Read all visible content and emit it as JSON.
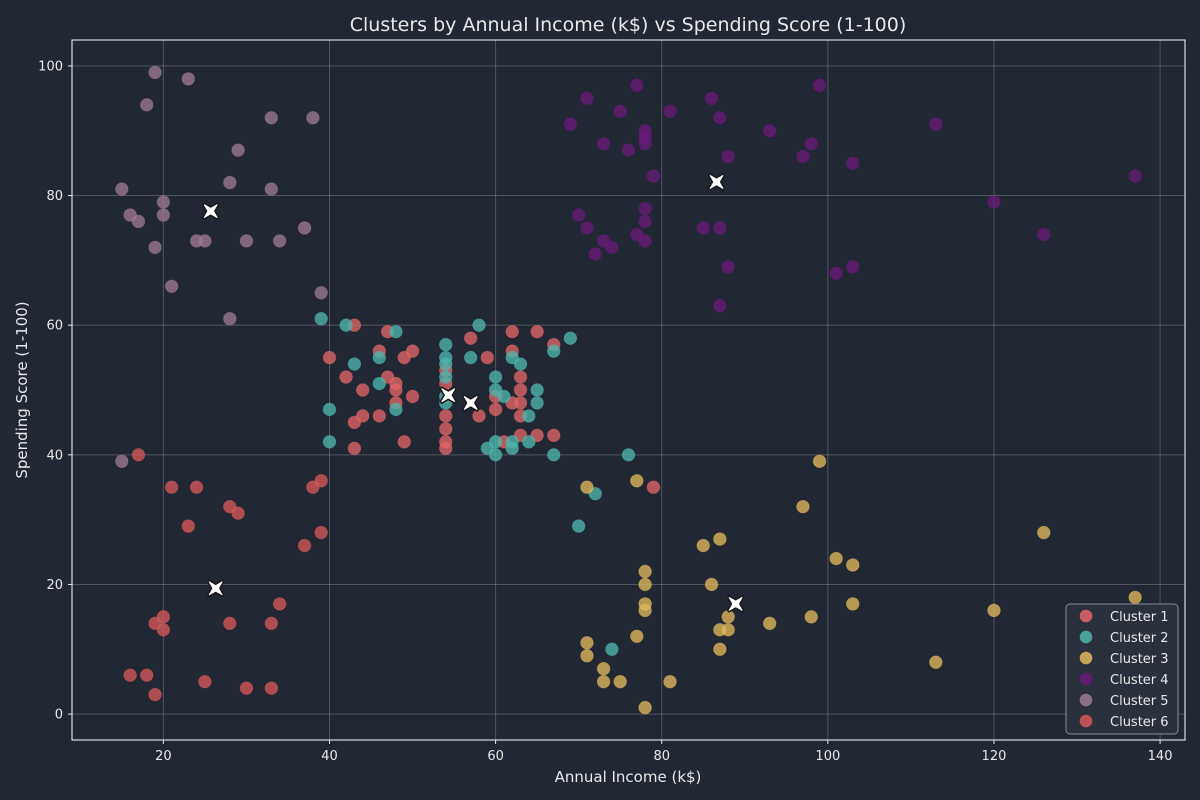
{
  "chart_data": {
    "type": "scatter",
    "title": "Clusters by Annual Income (k$) vs Spending Score (1-100)",
    "xlabel": "Annual Income (k$)",
    "ylabel": "Spending Score (1-100)",
    "xlim": [
      9,
      143
    ],
    "ylim": [
      -4,
      104
    ],
    "xticks": [
      20,
      40,
      60,
      80,
      100,
      120,
      140
    ],
    "yticks": [
      0,
      20,
      40,
      60,
      80,
      100
    ],
    "grid": true,
    "legend_position": "bottom-right",
    "series": [
      {
        "name": "Cluster 1",
        "color": "#e06666",
        "points": [
          [
            40,
            55
          ],
          [
            42,
            52
          ],
          [
            43,
            60
          ],
          [
            43,
            45
          ],
          [
            43,
            41
          ],
          [
            44,
            50
          ],
          [
            44,
            46
          ],
          [
            46,
            56
          ],
          [
            46,
            46
          ],
          [
            47,
            59
          ],
          [
            47,
            52
          ],
          [
            48,
            51
          ],
          [
            48,
            50
          ],
          [
            48,
            48
          ],
          [
            49,
            55
          ],
          [
            49,
            42
          ],
          [
            50,
            56
          ],
          [
            50,
            49
          ],
          [
            54,
            53
          ],
          [
            54,
            51
          ],
          [
            54,
            46
          ],
          [
            54,
            44
          ],
          [
            54,
            42
          ],
          [
            54,
            41
          ],
          [
            57,
            58
          ],
          [
            58,
            46
          ],
          [
            59,
            55
          ],
          [
            60,
            49
          ],
          [
            60,
            47
          ],
          [
            61,
            42
          ],
          [
            62,
            59
          ],
          [
            62,
            56
          ],
          [
            62,
            48
          ],
          [
            63,
            52
          ],
          [
            63,
            50
          ],
          [
            63,
            48
          ],
          [
            63,
            46
          ],
          [
            63,
            43
          ],
          [
            65,
            59
          ],
          [
            65,
            43
          ],
          [
            67,
            57
          ],
          [
            67,
            43
          ],
          [
            79,
            35
          ]
        ]
      },
      {
        "name": "Cluster 2",
        "color": "#4db6ac",
        "points": [
          [
            39,
            61
          ],
          [
            40,
            47
          ],
          [
            40,
            42
          ],
          [
            42,
            60
          ],
          [
            43,
            54
          ],
          [
            46,
            55
          ],
          [
            46,
            51
          ],
          [
            48,
            59
          ],
          [
            48,
            47
          ],
          [
            54,
            57
          ],
          [
            54,
            55
          ],
          [
            54,
            54
          ],
          [
            54,
            52
          ],
          [
            54,
            49
          ],
          [
            54,
            48
          ],
          [
            57,
            55
          ],
          [
            58,
            60
          ],
          [
            59,
            41
          ],
          [
            60,
            52
          ],
          [
            60,
            50
          ],
          [
            60,
            42
          ],
          [
            60,
            40
          ],
          [
            61,
            49
          ],
          [
            62,
            55
          ],
          [
            62,
            42
          ],
          [
            62,
            41
          ],
          [
            63,
            54
          ],
          [
            64,
            46
          ],
          [
            64,
            42
          ],
          [
            65,
            50
          ],
          [
            65,
            48
          ],
          [
            67,
            56
          ],
          [
            67,
            40
          ],
          [
            69,
            58
          ],
          [
            70,
            29
          ],
          [
            72,
            34
          ],
          [
            74,
            10
          ],
          [
            76,
            40
          ]
        ]
      },
      {
        "name": "Cluster 3",
        "color": "#e0b85c",
        "points": [
          [
            71,
            35
          ],
          [
            71,
            11
          ],
          [
            71,
            9
          ],
          [
            73,
            7
          ],
          [
            73,
            5
          ],
          [
            75,
            5
          ],
          [
            77,
            36
          ],
          [
            77,
            12
          ],
          [
            78,
            22
          ],
          [
            78,
            20
          ],
          [
            78,
            17
          ],
          [
            78,
            16
          ],
          [
            78,
            1
          ],
          [
            81,
            5
          ],
          [
            85,
            26
          ],
          [
            86,
            20
          ],
          [
            87,
            27
          ],
          [
            87,
            13
          ],
          [
            87,
            10
          ],
          [
            88,
            15
          ],
          [
            88,
            13
          ],
          [
            93,
            14
          ],
          [
            97,
            32
          ],
          [
            98,
            15
          ],
          [
            99,
            39
          ],
          [
            101,
            24
          ],
          [
            103,
            23
          ],
          [
            103,
            17
          ],
          [
            113,
            8
          ],
          [
            120,
            16
          ],
          [
            126,
            28
          ],
          [
            137,
            18
          ]
        ]
      },
      {
        "name": "Cluster 4",
        "color": "#6a1b7a",
        "points": [
          [
            69,
            91
          ],
          [
            70,
            77
          ],
          [
            71,
            95
          ],
          [
            71,
            75
          ],
          [
            72,
            71
          ],
          [
            73,
            88
          ],
          [
            73,
            73
          ],
          [
            74,
            72
          ],
          [
            75,
            93
          ],
          [
            76,
            87
          ],
          [
            77,
            97
          ],
          [
            77,
            74
          ],
          [
            78,
            90
          ],
          [
            78,
            89
          ],
          [
            78,
            88
          ],
          [
            78,
            78
          ],
          [
            78,
            76
          ],
          [
            78,
            73
          ],
          [
            79,
            83
          ],
          [
            81,
            93
          ],
          [
            85,
            75
          ],
          [
            86,
            95
          ],
          [
            87,
            92
          ],
          [
            87,
            75
          ],
          [
            87,
            63
          ],
          [
            88,
            86
          ],
          [
            88,
            69
          ],
          [
            93,
            90
          ],
          [
            97,
            86
          ],
          [
            98,
            88
          ],
          [
            99,
            97
          ],
          [
            101,
            68
          ],
          [
            103,
            85
          ],
          [
            103,
            69
          ],
          [
            113,
            91
          ],
          [
            120,
            79
          ],
          [
            126,
            74
          ],
          [
            137,
            83
          ]
        ]
      },
      {
        "name": "Cluster 5",
        "color": "#9c7a94",
        "points": [
          [
            15,
            81
          ],
          [
            15,
            39
          ],
          [
            16,
            77
          ],
          [
            17,
            76
          ],
          [
            18,
            94
          ],
          [
            19,
            99
          ],
          [
            19,
            72
          ],
          [
            20,
            79
          ],
          [
            20,
            77
          ],
          [
            21,
            66
          ],
          [
            23,
            98
          ],
          [
            24,
            73
          ],
          [
            25,
            73
          ],
          [
            28,
            82
          ],
          [
            28,
            61
          ],
          [
            29,
            87
          ],
          [
            30,
            73
          ],
          [
            33,
            92
          ],
          [
            33,
            81
          ],
          [
            34,
            73
          ],
          [
            37,
            75
          ],
          [
            38,
            92
          ],
          [
            39,
            65
          ]
        ]
      },
      {
        "name": "Cluster 6",
        "color": "#d65858",
        "points": [
          [
            16,
            6
          ],
          [
            17,
            40
          ],
          [
            18,
            6
          ],
          [
            19,
            14
          ],
          [
            19,
            3
          ],
          [
            20,
            15
          ],
          [
            20,
            13
          ],
          [
            21,
            35
          ],
          [
            23,
            29
          ],
          [
            24,
            35
          ],
          [
            25,
            5
          ],
          [
            28,
            32
          ],
          [
            28,
            14
          ],
          [
            29,
            31
          ],
          [
            30,
            4
          ],
          [
            33,
            14
          ],
          [
            33,
            4
          ],
          [
            34,
            17
          ],
          [
            37,
            26
          ],
          [
            38,
            35
          ],
          [
            39,
            36
          ],
          [
            39,
            28
          ]
        ]
      }
    ],
    "centroids": [
      [
        54.3,
        49.2
      ],
      [
        57.0,
        48.0
      ],
      [
        88.9,
        17.0
      ],
      [
        86.6,
        82.1
      ],
      [
        25.7,
        77.6
      ],
      [
        26.3,
        19.4
      ]
    ]
  }
}
